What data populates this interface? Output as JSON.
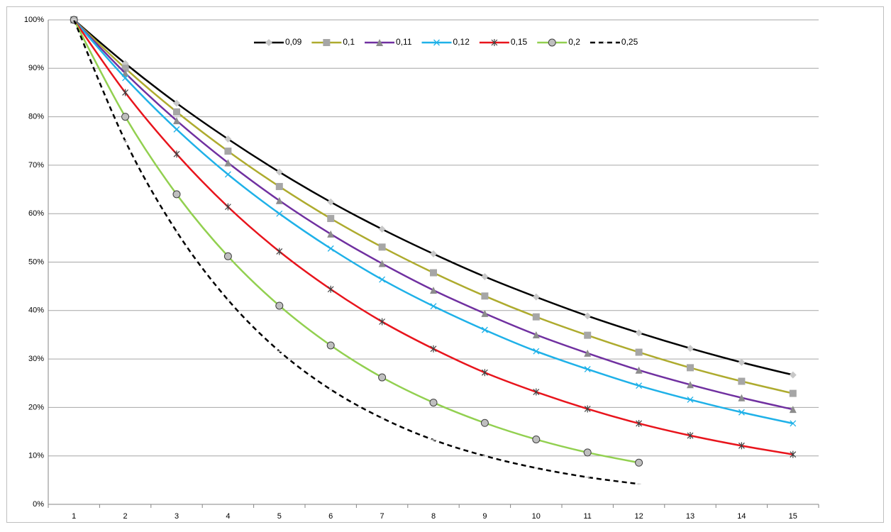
{
  "chart_data": {
    "type": "line",
    "categories": [
      "1",
      "2",
      "3",
      "4",
      "5",
      "6",
      "7",
      "8",
      "9",
      "10",
      "11",
      "12",
      "13",
      "14",
      "15"
    ],
    "ylim": [
      0,
      100
    ],
    "yticks": [
      {
        "value": 0,
        "label": "0%"
      },
      {
        "value": 10,
        "label": "10%"
      },
      {
        "value": 20,
        "label": "20%"
      },
      {
        "value": 30,
        "label": "30%"
      },
      {
        "value": 40,
        "label": "40%"
      },
      {
        "value": 50,
        "label": "50%"
      },
      {
        "value": 60,
        "label": "60%"
      },
      {
        "value": 70,
        "label": "70%"
      },
      {
        "value": 80,
        "label": "80%"
      },
      {
        "value": 90,
        "label": "90%"
      },
      {
        "value": 100,
        "label": "100%"
      }
    ],
    "grid": true,
    "legend": "top",
    "series": [
      {
        "name": "0,09",
        "color": "#000000",
        "marker": "diamond",
        "values": [
          100,
          91,
          82.8,
          75.4,
          68.6,
          62.4,
          56.8,
          51.7,
          47.0,
          42.8,
          38.9,
          35.4,
          32.2,
          29.3,
          26.7
        ]
      },
      {
        "name": "0,1",
        "color": "#aeab2e",
        "marker": "square",
        "values": [
          100,
          90,
          81,
          72.9,
          65.6,
          59.0,
          53.1,
          47.8,
          43.0,
          38.7,
          34.9,
          31.4,
          28.2,
          25.4,
          22.9
        ]
      },
      {
        "name": "0,11",
        "color": "#7030a0",
        "marker": "triangle",
        "values": [
          100,
          89,
          79.2,
          70.5,
          62.7,
          55.8,
          49.7,
          44.2,
          39.4,
          35.0,
          31.2,
          27.7,
          24.7,
          22.0,
          19.6
        ]
      },
      {
        "name": "0,12",
        "color": "#1fb1e8",
        "marker": "x",
        "values": [
          100,
          88,
          77.4,
          68.1,
          60.0,
          52.8,
          46.4,
          40.9,
          36.0,
          31.6,
          27.9,
          24.5,
          21.6,
          19.0,
          16.7
        ]
      },
      {
        "name": "0,15",
        "color": "#e8141c",
        "marker": "star",
        "values": [
          100,
          85,
          72.3,
          61.4,
          52.2,
          44.4,
          37.7,
          32.1,
          27.2,
          23.2,
          19.7,
          16.7,
          14.2,
          12.1,
          10.3
        ]
      },
      {
        "name": "0,2",
        "color": "#92d050",
        "marker": "circle",
        "values": [
          100,
          80,
          64,
          51.2,
          41.0,
          32.8,
          26.2,
          21.0,
          16.8,
          13.4,
          10.7,
          8.6,
          null,
          null,
          null
        ]
      },
      {
        "name": "0,25",
        "color": "#000000",
        "marker": "dash",
        "dashed": true,
        "values": [
          100,
          75,
          56.3,
          42.2,
          31.6,
          23.7,
          17.8,
          13.3,
          10.0,
          7.5,
          5.6,
          4.2,
          null,
          null,
          null
        ]
      }
    ]
  }
}
